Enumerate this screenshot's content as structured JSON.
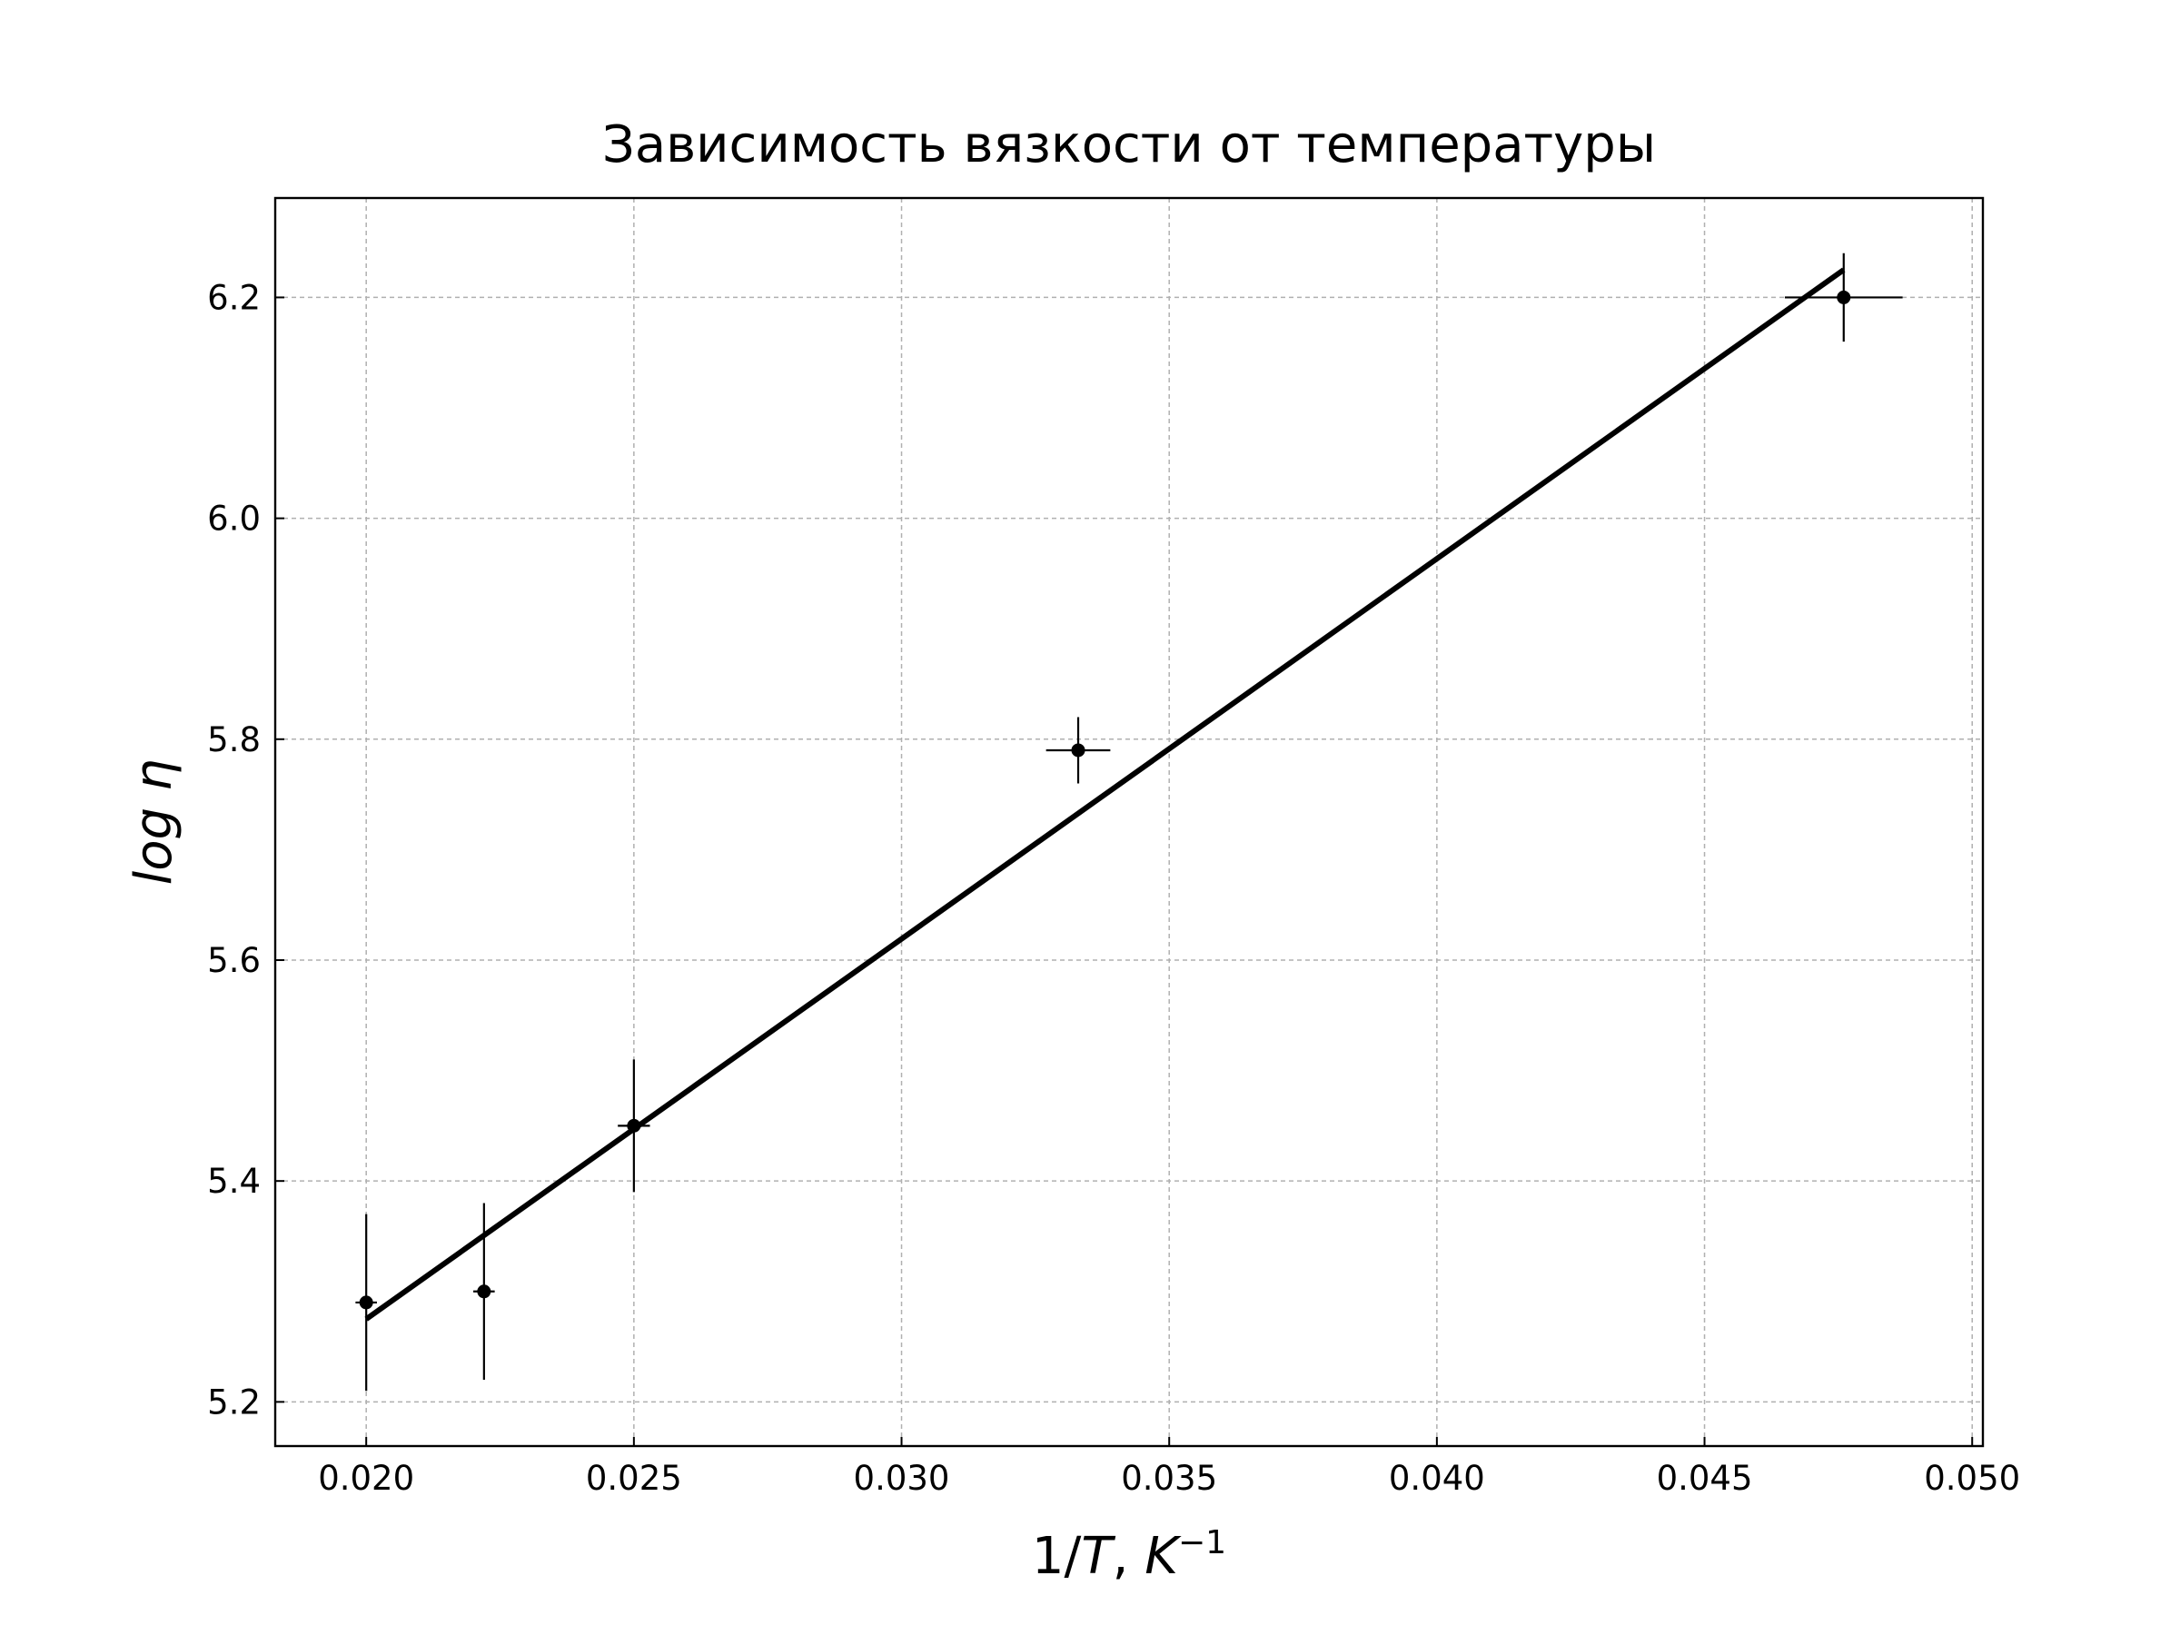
{
  "chart_data": {
    "type": "scatter",
    "title": "Зависимость вязкости от температуры",
    "xlabel": {
      "prefix": "1/",
      "var": "T",
      "sep": ", ",
      "unit": "K",
      "sup": "−1"
    },
    "ylabel": "log η",
    "xlim": [
      0.0183,
      0.0502
    ],
    "ylim": [
      5.16,
      6.29
    ],
    "xticks": [
      0.02,
      0.025,
      0.03,
      0.035,
      0.04,
      0.045,
      0.05
    ],
    "xtick_labels": [
      "0.020",
      "0.025",
      "0.030",
      "0.035",
      "0.040",
      "0.045",
      "0.050"
    ],
    "yticks": [
      5.2,
      5.4,
      5.6,
      5.8,
      6.0,
      6.2
    ],
    "ytick_labels": [
      "5.2",
      "5.4",
      "5.6",
      "5.8",
      "6.0",
      "6.2"
    ],
    "grid": true,
    "points": [
      {
        "x": 0.02,
        "y": 5.29,
        "xerr": 0.0002,
        "yerr": 0.08
      },
      {
        "x": 0.0222,
        "y": 5.3,
        "xerr": 0.0002,
        "yerr": 0.08
      },
      {
        "x": 0.025,
        "y": 5.45,
        "xerr": 0.0003,
        "yerr": 0.06
      },
      {
        "x": 0.0333,
        "y": 5.79,
        "xerr": 0.0006,
        "yerr": 0.03
      },
      {
        "x": 0.0476,
        "y": 6.2,
        "xerr": 0.0011,
        "yerr": 0.04
      }
    ],
    "fit_line": {
      "x": [
        0.02,
        0.0476
      ],
      "y": [
        5.275,
        6.225
      ]
    },
    "colors": {
      "line": "#000000",
      "points": "#000000",
      "grid": "#b0b0b0"
    }
  }
}
